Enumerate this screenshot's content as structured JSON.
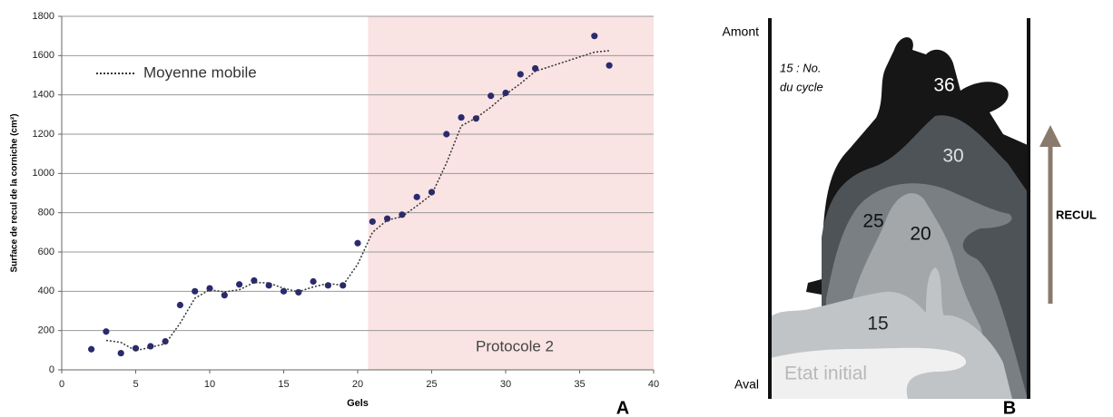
{
  "chart_data": {
    "type": "scatter",
    "x_label": "Gels",
    "y_label": "Surface de recul de la corniche (cm²)",
    "panel_label": "A",
    "xlim": [
      0,
      40
    ],
    "ylim": [
      0,
      1800
    ],
    "xticks": [
      0,
      5,
      10,
      15,
      20,
      25,
      30,
      35,
      40
    ],
    "yticks": [
      0,
      200,
      400,
      600,
      800,
      1000,
      1200,
      1400,
      1600,
      1800
    ],
    "grid": true,
    "legend": "upper left",
    "shaded_region": {
      "xlim": [
        20.7,
        40
      ],
      "label": "Protocole 2",
      "color": "#f9e3e3"
    },
    "series": [
      {
        "color": "#2b2a6f",
        "x": [
          2,
          3,
          4,
          5,
          6,
          7,
          8,
          9,
          10,
          11,
          12,
          13,
          14,
          15,
          16,
          17,
          18,
          19,
          20,
          21,
          22,
          23,
          24,
          25,
          26,
          27,
          28,
          29,
          30,
          31,
          32,
          36,
          37
        ],
        "values": [
          105,
          195,
          85,
          110,
          120,
          145,
          330,
          400,
          415,
          380,
          435,
          455,
          430,
          400,
          395,
          450,
          430,
          430,
          645,
          755,
          770,
          790,
          880,
          905,
          1200,
          1285,
          1280,
          1395,
          1410,
          1505,
          1535,
          1700,
          1550
        ]
      },
      {
        "name": "Moyenne mobile",
        "type": "line",
        "dash": "dotted",
        "color": "#333333",
        "x": [
          3,
          4,
          5,
          6,
          7,
          8,
          9,
          10,
          11,
          12,
          13,
          14,
          15,
          16,
          17,
          18,
          19,
          20,
          21,
          22,
          23,
          24,
          25,
          26,
          27,
          28,
          29,
          30,
          31,
          32,
          36,
          37
        ],
        "values": [
          150,
          140,
          97.5,
          115,
          132.5,
          237.5,
          365,
          407.5,
          397.5,
          407.5,
          445,
          442.5,
          415,
          397.5,
          422.5,
          440,
          430,
          537.5,
          700,
          762.5,
          780,
          835,
          892.5,
          1052.5,
          1242.5,
          1282.5,
          1337.5,
          1402.5,
          1457.5,
          1520,
          1617.5,
          1625
        ]
      }
    ]
  },
  "diagram": {
    "panel_label": "B",
    "labels": {
      "upstream": "Amont",
      "downstream": "Aval",
      "note_line1": "15 : No.",
      "note_line2": "du cycle",
      "top_state": "Etat initial",
      "bottom_state": "Etat initial",
      "retreat": "RECUL"
    },
    "cycles": [
      "36",
      "30",
      "25",
      "20",
      "15"
    ]
  }
}
